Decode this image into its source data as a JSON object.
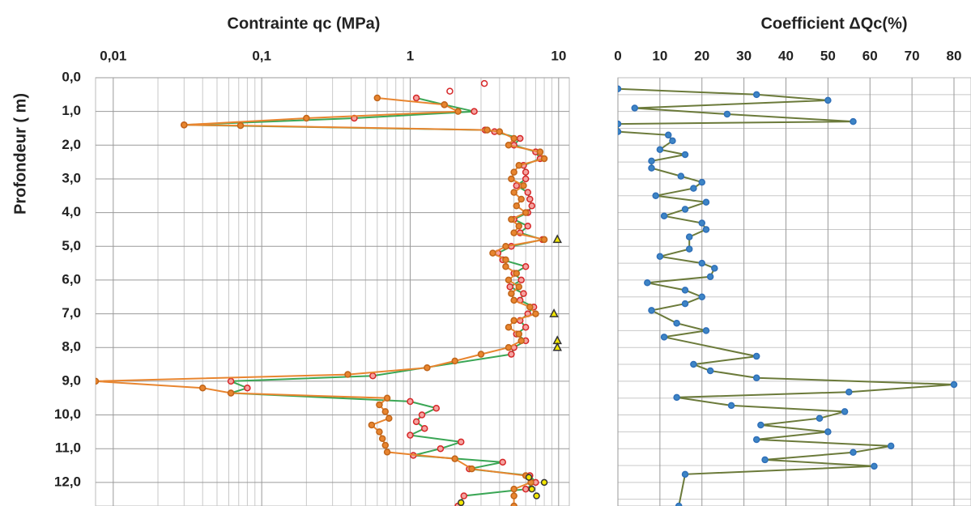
{
  "chart_data": [
    {
      "type": "profile",
      "title": "Contrainte qc  (MPa)",
      "ylabel": "Profondeur ( m)",
      "xscale": "log",
      "xlim": [
        0.0076,
        11.8
      ],
      "ylim": [
        0,
        12.7
      ],
      "xticks": [
        {
          "value": 0.01,
          "label": "0,01"
        },
        {
          "value": 0.1,
          "label": "0,1"
        },
        1,
        10
      ],
      "xminorticks": [
        0.02,
        0.03,
        0.04,
        0.05,
        0.06,
        0.07,
        0.08,
        0.09,
        0.2,
        0.3,
        0.4,
        0.5,
        0.6,
        0.7,
        0.8,
        0.9,
        2,
        3,
        4,
        5,
        6,
        7,
        8,
        9
      ],
      "yticks": [
        {
          "value": 0,
          "label": "0,0"
        },
        {
          "value": 1,
          "label": "1,0"
        },
        {
          "value": 2,
          "label": "2,0"
        },
        {
          "value": 3,
          "label": "3,0"
        },
        {
          "value": 4,
          "label": "4,0"
        },
        {
          "value": 5,
          "label": "5,0"
        },
        {
          "value": 6,
          "label": "6,0"
        },
        {
          "value": 7,
          "label": "7,0"
        },
        {
          "value": 8,
          "label": "8,0"
        },
        {
          "value": 9,
          "label": "9,0"
        },
        {
          "value": 10,
          "label": "10,0"
        },
        {
          "value": 11,
          "label": "11,0"
        },
        {
          "value": 12,
          "label": "12,0"
        }
      ],
      "grid": true,
      "series": [
        {
          "color": "#3aa655",
          "line": true,
          "marker": "circle",
          "marker_stroke": "#d62728",
          "marker_fill": "#f4a3a0",
          "x": [
            1.1,
            1.7,
            2.7,
            0.42,
            0.03,
            3.2,
            3.7,
            5.5,
            5.0,
            7.0,
            7.5,
            5.8,
            6.0,
            6.0,
            5.2,
            6.2,
            6.4,
            6.6,
            6.2,
            5.0,
            6.2,
            5.5,
            7.8,
            4.8,
            3.9,
            4.2,
            6.0,
            5.0,
            5.6,
            4.7,
            5.8,
            5.5,
            6.8,
            6.2,
            5.5,
            6.0,
            5.2,
            6.0,
            5.0,
            4.8,
            0.56,
            0.062,
            0.08,
            0.062,
            1.0,
            1.5,
            1.2,
            1.1,
            1.25,
            1.0,
            2.2,
            1.6,
            1.05,
            4.2,
            2.5,
            6.4,
            7.0,
            6.0,
            2.3,
            2.1
          ],
          "y": [
            0.6,
            0.8,
            1.0,
            1.2,
            1.4,
            1.55,
            1.6,
            1.8,
            2.0,
            2.2,
            2.4,
            2.6,
            2.8,
            3.0,
            3.2,
            3.4,
            3.6,
            3.8,
            4.0,
            4.2,
            4.4,
            4.6,
            4.8,
            5.0,
            5.2,
            5.4,
            5.6,
            5.8,
            6.0,
            6.2,
            6.4,
            6.6,
            6.8,
            7.0,
            7.2,
            7.4,
            7.6,
            7.8,
            8.0,
            8.2,
            8.84,
            9.0,
            9.2,
            9.35,
            9.6,
            9.8,
            10.0,
            10.2,
            10.4,
            10.6,
            10.8,
            11.0,
            11.2,
            11.4,
            11.6,
            11.8,
            12.0,
            12.2,
            12.4,
            12.7
          ]
        },
        {
          "color": "#e8852f",
          "line": true,
          "marker": "circle",
          "marker_stroke": "#c0651a",
          "marker_fill": "#e8852f",
          "x": [
            0.6,
            1.7,
            2.1,
            0.2,
            0.03,
            0.072,
            3.3,
            4.0,
            5.0,
            4.6,
            7.5,
            8.0,
            5.4,
            5.0,
            4.8,
            5.8,
            5.0,
            5.6,
            5.2,
            6.0,
            4.8,
            5.4,
            5.0,
            8.0,
            4.4,
            3.6,
            4.4,
            4.4,
            5.2,
            4.6,
            5.4,
            4.8,
            5.0,
            6.4,
            7.0,
            5.0,
            4.6,
            5.4,
            5.6,
            4.6,
            3.0,
            2.0,
            1.3,
            0.38,
            0.0076,
            0.04,
            0.062,
            0.7,
            0.62,
            0.68,
            0.72,
            0.55,
            0.62,
            0.65,
            0.68,
            0.7,
            2.0,
            2.6,
            6.0,
            6.5,
            5.0,
            5.0,
            5.0
          ],
          "y": [
            0.6,
            0.8,
            1.0,
            1.2,
            1.4,
            1.42,
            1.55,
            1.6,
            1.8,
            2.0,
            2.2,
            2.4,
            2.6,
            2.8,
            3.0,
            3.2,
            3.4,
            3.6,
            3.8,
            4.0,
            4.2,
            4.4,
            4.6,
            4.8,
            5.0,
            5.2,
            5.4,
            5.6,
            5.8,
            6.0,
            6.2,
            6.4,
            6.6,
            6.8,
            7.0,
            7.2,
            7.4,
            7.6,
            7.8,
            8.0,
            8.2,
            8.4,
            8.6,
            8.8,
            9.0,
            9.2,
            9.35,
            9.5,
            9.7,
            9.9,
            10.1,
            10.3,
            10.5,
            10.7,
            10.9,
            11.1,
            11.3,
            11.6,
            11.8,
            12.0,
            12.2,
            12.4,
            12.7
          ]
        },
        {
          "color": "#d62728",
          "line": false,
          "marker": "circle",
          "marker_stroke": "#d62728",
          "marker_fill": "#ffffff",
          "x": [
            3.16,
            1.85
          ],
          "y": [
            0.17,
            0.4
          ]
        },
        {
          "color": "#333333",
          "line": false,
          "marker": "triangle",
          "marker_stroke": "#333333",
          "marker_fill": "#f2e600",
          "x": [
            9.8,
            9.3,
            9.8,
            9.8
          ],
          "y": [
            4.8,
            7.0,
            7.8,
            8.0
          ]
        },
        {
          "color": "#333333",
          "line": false,
          "marker": "circle",
          "marker_stroke": "#333333",
          "marker_fill": "#f2e600",
          "x": [
            6.3,
            8.0,
            6.6,
            7.1,
            2.2
          ],
          "y": [
            11.85,
            12.0,
            12.2,
            12.4,
            12.6
          ]
        }
      ]
    },
    {
      "type": "profile",
      "title": "Coefficient ΔQc(%)",
      "xscale": "linear",
      "xlim": [
        0,
        80
      ],
      "ylim": [
        0,
        12.7
      ],
      "xticks": [
        0,
        10,
        20,
        30,
        40,
        50,
        60,
        70,
        80
      ],
      "ygrid": [
        0.5,
        1,
        1.5,
        2,
        2.5,
        3,
        3.5,
        4,
        4.5,
        5,
        5.5,
        6,
        6.5,
        7,
        7.5,
        8,
        8.5,
        9,
        9.5,
        10,
        10.5,
        11,
        11.5,
        12,
        12.5
      ],
      "grid": true,
      "series": [
        {
          "color": "#6b7a3a",
          "line": true,
          "marker": "circle",
          "marker_stroke": "#2f6fb8",
          "marker_fill": "#3d85c6",
          "x": [
            0,
            33,
            50,
            4,
            26,
            56,
            0,
            0,
            12,
            13,
            10,
            16,
            8,
            8,
            15,
            20,
            18,
            9,
            21,
            16,
            11,
            20,
            21,
            17,
            17,
            10,
            20,
            23,
            22,
            7,
            16,
            20,
            16,
            8,
            14,
            21,
            11,
            33,
            18,
            22,
            33,
            80,
            55,
            14,
            27,
            54,
            48,
            34,
            50,
            33,
            65,
            56,
            35,
            61,
            16,
            14.5
          ],
          "y": [
            0.33,
            0.5,
            0.67,
            0.9,
            1.08,
            1.3,
            1.37,
            1.6,
            1.7,
            1.87,
            2.13,
            2.28,
            2.47,
            2.68,
            2.92,
            3.1,
            3.28,
            3.5,
            3.69,
            3.9,
            4.1,
            4.31,
            4.5,
            4.72,
            5.08,
            5.3,
            5.5,
            5.65,
            5.9,
            6.08,
            6.3,
            6.5,
            6.7,
            6.9,
            7.28,
            7.5,
            7.69,
            8.26,
            8.5,
            8.69,
            8.9,
            9.1,
            9.32,
            9.48,
            9.72,
            9.9,
            10.1,
            10.3,
            10.5,
            10.73,
            10.92,
            11.11,
            11.33,
            11.52,
            11.76,
            12.7
          ]
        }
      ]
    }
  ]
}
